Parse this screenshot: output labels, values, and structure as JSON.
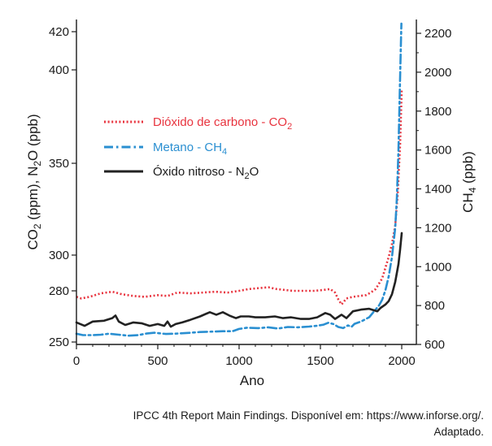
{
  "chart_data": {
    "type": "line",
    "xlabel": "Ano",
    "ylabel_left": {
      "main": "CO",
      "sub1": "2",
      "mid": " (ppm), N",
      "sub2": "2",
      "tail": "O (ppb)"
    },
    "ylabel_right": {
      "main": "CH",
      "sub": "4",
      "tail": " (ppb)"
    },
    "xlim": [
      0,
      2000
    ],
    "ylim_left": [
      250,
      425
    ],
    "ylim_right": [
      600,
      2250
    ],
    "x_ticks": [
      "0",
      "500",
      "1000",
      "1500",
      "2000"
    ],
    "y_ticks_left": [
      "250",
      "280",
      "300",
      "350",
      "400",
      "420"
    ],
    "y_ticks_right": [
      "600",
      "800",
      "1000",
      "1200",
      "1400",
      "1600",
      "1800",
      "2000",
      "2200"
    ],
    "legend_placement": "center-left",
    "grid": false,
    "series": [
      {
        "name": "Dióxido de carbono - CO₂",
        "legend": {
          "main": "Dióxido de carbono - CO",
          "sub": "2"
        },
        "axis": "left",
        "color": "#e8343f",
        "style": "dotted",
        "points": [
          [
            0,
            276.5
          ],
          [
            30,
            275.5
          ],
          [
            80,
            276.5
          ],
          [
            150,
            278.5
          ],
          [
            220,
            279.5
          ],
          [
            280,
            278
          ],
          [
            350,
            277
          ],
          [
            420,
            276.5
          ],
          [
            500,
            277.5
          ],
          [
            560,
            277
          ],
          [
            620,
            279
          ],
          [
            700,
            278.5
          ],
          [
            780,
            279
          ],
          [
            850,
            279.5
          ],
          [
            930,
            279
          ],
          [
            1000,
            280
          ],
          [
            1060,
            281
          ],
          [
            1120,
            281.5
          ],
          [
            1180,
            282
          ],
          [
            1230,
            281
          ],
          [
            1280,
            280.5
          ],
          [
            1330,
            280
          ],
          [
            1400,
            280
          ],
          [
            1460,
            280
          ],
          [
            1520,
            280.5
          ],
          [
            1560,
            281
          ],
          [
            1590,
            279
          ],
          [
            1610,
            275
          ],
          [
            1630,
            272
          ],
          [
            1660,
            275.5
          ],
          [
            1700,
            276.5
          ],
          [
            1740,
            277
          ],
          [
            1780,
            277.5
          ],
          [
            1810,
            279
          ],
          [
            1840,
            281
          ],
          [
            1860,
            284
          ],
          [
            1880,
            287
          ],
          [
            1900,
            293
          ],
          [
            1920,
            299
          ],
          [
            1940,
            306
          ],
          [
            1960,
            316
          ],
          [
            1975,
            333
          ],
          [
            1990,
            360
          ],
          [
            2000,
            390
          ]
        ]
      },
      {
        "name": "Metano - CH₄",
        "legend": {
          "main": "Metano - CH",
          "sub": "4"
        },
        "axis": "right",
        "color": "#2a8fd1",
        "style": "dashdot",
        "points": [
          [
            0,
            655
          ],
          [
            40,
            648
          ],
          [
            100,
            648
          ],
          [
            150,
            650
          ],
          [
            200,
            655
          ],
          [
            260,
            650
          ],
          [
            320,
            645
          ],
          [
            380,
            648
          ],
          [
            430,
            656
          ],
          [
            480,
            660
          ],
          [
            550,
            654
          ],
          [
            620,
            656
          ],
          [
            700,
            660
          ],
          [
            760,
            664
          ],
          [
            830,
            666
          ],
          [
            900,
            668
          ],
          [
            960,
            668
          ],
          [
            1000,
            680
          ],
          [
            1050,
            686
          ],
          [
            1120,
            684
          ],
          [
            1180,
            688
          ],
          [
            1240,
            682
          ],
          [
            1300,
            690
          ],
          [
            1360,
            688
          ],
          [
            1430,
            692
          ],
          [
            1480,
            696
          ],
          [
            1520,
            702
          ],
          [
            1550,
            712
          ],
          [
            1580,
            705
          ],
          [
            1610,
            690
          ],
          [
            1640,
            684
          ],
          [
            1670,
            698
          ],
          [
            1690,
            690
          ],
          [
            1710,
            706
          ],
          [
            1750,
            718
          ],
          [
            1800,
            740
          ],
          [
            1840,
            780
          ],
          [
            1860,
            800
          ],
          [
            1880,
            830
          ],
          [
            1900,
            880
          ],
          [
            1920,
            950
          ],
          [
            1940,
            1050
          ],
          [
            1960,
            1200
          ],
          [
            1970,
            1350
          ],
          [
            1980,
            1600
          ],
          [
            1988,
            1900
          ],
          [
            1995,
            2150
          ],
          [
            1998,
            2250
          ]
        ]
      },
      {
        "name": "Óxido nitroso - N₂O",
        "legend": {
          "main": "Óxido nitroso - N",
          "sub": "2",
          "tail": "O"
        },
        "axis": "left",
        "color": "#222222",
        "style": "solid",
        "points": [
          [
            0,
            261.5
          ],
          [
            50,
            259.5
          ],
          [
            100,
            262
          ],
          [
            170,
            262.5
          ],
          [
            220,
            264
          ],
          [
            240,
            265.5
          ],
          [
            260,
            262
          ],
          [
            300,
            260
          ],
          [
            350,
            261.5
          ],
          [
            400,
            261
          ],
          [
            450,
            259.5
          ],
          [
            500,
            260.5
          ],
          [
            540,
            259.5
          ],
          [
            560,
            262
          ],
          [
            580,
            259
          ],
          [
            610,
            260.5
          ],
          [
            650,
            261.5
          ],
          [
            700,
            263
          ],
          [
            760,
            265
          ],
          [
            820,
            267.5
          ],
          [
            860,
            266
          ],
          [
            900,
            267.5
          ],
          [
            940,
            265.5
          ],
          [
            980,
            264
          ],
          [
            1010,
            265
          ],
          [
            1060,
            265
          ],
          [
            1100,
            264.5
          ],
          [
            1160,
            264.5
          ],
          [
            1220,
            265
          ],
          [
            1270,
            264
          ],
          [
            1320,
            264.5
          ],
          [
            1380,
            263.5
          ],
          [
            1430,
            263.5
          ],
          [
            1480,
            264.5
          ],
          [
            1530,
            267
          ],
          [
            1560,
            266
          ],
          [
            1590,
            263.5
          ],
          [
            1630,
            266
          ],
          [
            1660,
            264
          ],
          [
            1700,
            268
          ],
          [
            1750,
            269
          ],
          [
            1800,
            269.5
          ],
          [
            1850,
            268
          ],
          [
            1870,
            270
          ],
          [
            1900,
            272
          ],
          [
            1920,
            274
          ],
          [
            1940,
            278
          ],
          [
            1960,
            285
          ],
          [
            1980,
            295
          ],
          [
            1990,
            303
          ],
          [
            2000,
            312
          ]
        ]
      }
    ]
  },
  "caption": {
    "line1": "IPCC 4th Report Main Findings. Disponível em: https://www.inforse.org/.",
    "line2": "Adaptado."
  }
}
